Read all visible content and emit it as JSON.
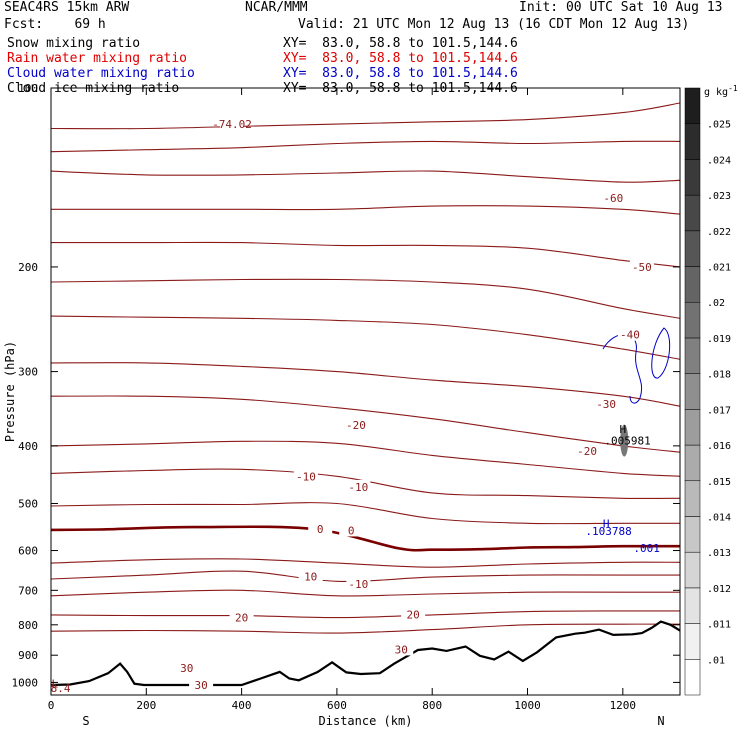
{
  "header": {
    "model": "SEAC4RS 15km ARW",
    "org": "NCAR/MMM",
    "init": "Init: 00 UTC Sat 10 Aug 13",
    "fcst": "Fcst:    69 h",
    "valid": "Valid: 21 UTC Mon 12 Aug 13 (16 CDT Mon 12 Aug 13)"
  },
  "legend": [
    {
      "name": "Snow mixing ratio",
      "xy": "XY=  83.0, 58.8 to 101.5,144.6",
      "color": "#000000"
    },
    {
      "name": "Rain water mixing ratio",
      "xy": "XY=  83.0, 58.8 to 101.5,144.6",
      "color": "#e00000"
    },
    {
      "name": "Cloud water mixing ratio",
      "xy": "XY=  83.0, 58.8 to 101.5,144.6",
      "color": "#0000c8"
    },
    {
      "name": "Cloud ice mixing ratio",
      "xy": "XY=  83.0, 58.8 to 101.5,144.6",
      "color": "#000000"
    }
  ],
  "chart_data": {
    "type": "contour",
    "xlabel": "Distance (km)",
    "ylabel": "Pressure (hPa)",
    "xlim": [
      0,
      1320
    ],
    "ylim": [
      1050,
      100
    ],
    "yscale": "log",
    "x_ticks": [
      0,
      200,
      400,
      600,
      800,
      1000,
      1200
    ],
    "y_ticks": [
      100,
      200,
      300,
      400,
      500,
      600,
      700,
      800,
      900,
      1000
    ],
    "x_end_labels": {
      "left": "S",
      "right": "N"
    },
    "temperature_line_color": "#8b1a1a",
    "freezing_line_color": "#7a0000",
    "terrain_color": "#000000",
    "colorbar": {
      "unit": "g kg-1",
      "ticks": [
        ".01",
        ".011",
        ".012",
        ".013",
        ".014",
        ".015",
        ".016",
        ".017",
        ".018",
        ".019",
        ".02",
        ".021",
        ".022",
        ".023",
        ".024",
        ".025"
      ]
    },
    "isotherm_labels": [
      {
        "text": "-74.02",
        "x": 380,
        "p": 115
      },
      {
        "text": "-60",
        "x": 1180,
        "p": 153
      },
      {
        "text": "-50",
        "x": 1240,
        "p": 200
      },
      {
        "text": "-40",
        "x": 1215,
        "p": 260
      },
      {
        "text": "-30",
        "x": 1165,
        "p": 340
      },
      {
        "text": "-20",
        "x": 640,
        "p": 369
      },
      {
        "text": "-20",
        "x": 1125,
        "p": 408
      },
      {
        "text": "-10",
        "x": 535,
        "p": 450
      },
      {
        "text": "-10",
        "x": 645,
        "p": 469
      },
      {
        "text": "0",
        "x": 565,
        "p": 552
      },
      {
        "text": "0",
        "x": 630,
        "p": 555
      },
      {
        "text": "10",
        "x": 545,
        "p": 664
      },
      {
        "text": "-10",
        "x": 645,
        "p": 683
      },
      {
        "text": "20",
        "x": 400,
        "p": 778
      },
      {
        "text": "20",
        "x": 760,
        "p": 768
      },
      {
        "text": "30",
        "x": 735,
        "p": 880
      },
      {
        "text": "30",
        "x": 285,
        "p": 946
      },
      {
        "text": "30",
        "x": 315,
        "p": 1010
      }
    ],
    "isotherm_x": [
      0,
      200,
      400,
      600,
      800,
      1000,
      1200,
      1320
    ],
    "isotherms": [
      {
        "p": [
          117,
          117,
          116,
          115,
          114,
          113,
          110,
          106
        ]
      },
      {
        "p": [
          128,
          127,
          126,
          124,
          123,
          124,
          123,
          123
        ]
      },
      {
        "p": [
          138,
          140,
          140,
          139,
          138,
          141,
          144,
          143
        ]
      },
      {
        "p": [
          160,
          160,
          160,
          160,
          158,
          158,
          160,
          163
        ]
      },
      {
        "p": [
          182,
          182,
          182,
          184,
          184,
          186,
          195,
          200
        ]
      },
      {
        "p": [
          212,
          211,
          210,
          210,
          212,
          218,
          235,
          244
        ]
      },
      {
        "p": [
          242,
          243,
          244,
          246,
          250,
          260,
          275,
          286
        ]
      },
      {
        "p": [
          290,
          290,
          294,
          300,
          310,
          318,
          330,
          343
        ]
      },
      {
        "p": [
          330,
          330,
          334,
          345,
          360,
          380,
          400,
          410
        ]
      },
      {
        "p": [
          400,
          397,
          393,
          396,
          415,
          430,
          445,
          450
        ]
      },
      {
        "p": [
          445,
          440,
          438,
          450,
          480,
          485,
          490,
          490
        ]
      },
      {
        "p": [
          505,
          502,
          502,
          500,
          530,
          540,
          540,
          540
        ]
      },
      {
        "p": [
          630,
          622,
          620,
          630,
          640,
          632,
          628,
          628
        ]
      },
      {
        "p": [
          670,
          660,
          650,
          676,
          665,
          660,
          660,
          660
        ]
      },
      {
        "p": [
          715,
          705,
          700,
          715,
          710,
          705,
          705,
          705
        ]
      },
      {
        "p": [
          770,
          772,
          772,
          778,
          770,
          760,
          758,
          758
        ]
      },
      {
        "p": [
          820,
          818,
          820,
          826,
          815,
          800,
          798,
          798
        ]
      }
    ],
    "freezing_line": {
      "x": [
        0,
        100,
        300,
        550,
        730,
        800,
        900,
        1000,
        1100,
        1200,
        1320
      ],
      "p": [
        554,
        553,
        548,
        552,
        595,
        598,
        597,
        593,
        592,
        590,
        590
      ]
    },
    "terrain": {
      "x": [
        0,
        40,
        80,
        120,
        145,
        160,
        175,
        195,
        250,
        320,
        400,
        440,
        480,
        500,
        520,
        560,
        590,
        610,
        620,
        650,
        690,
        720,
        770,
        800,
        830,
        870,
        900,
        930,
        960,
        990,
        1020,
        1060,
        1100,
        1120,
        1150,
        1180,
        1220,
        1240,
        1260,
        1280,
        1300,
        1320
      ],
      "p": [
        1010,
        1008,
        995,
        965,
        930,
        960,
        1005,
        1010,
        1010,
        1010,
        1010,
        985,
        960,
        985,
        992,
        960,
        925,
        950,
        962,
        968,
        965,
        930,
        882,
        877,
        885,
        870,
        902,
        915,
        888,
        920,
        890,
        840,
        828,
        825,
        815,
        832,
        830,
        826,
        810,
        790,
        800,
        818
      ]
    },
    "annotations": [
      {
        "text": "H",
        "color": "#000000",
        "x": 1200,
        "p": 375
      },
      {
        "text": ".005981",
        "color": "#000000",
        "x": 1210,
        "p": 392
      },
      {
        "text": "H",
        "color": "#0000c8",
        "x": 1165,
        "p": 540
      },
      {
        "text": ".103788",
        "color": "#0000c8",
        "x": 1170,
        "p": 556
      },
      {
        "text": ".001",
        "color": "#0000c8",
        "x": 1250,
        "p": 594
      },
      {
        "text": "L",
        "color": "#8b1a1a",
        "x": 8,
        "p": 1004
      },
      {
        "text": "8.4",
        "color": "#8b1a1a",
        "x": 20,
        "p": 1021
      }
    ]
  }
}
